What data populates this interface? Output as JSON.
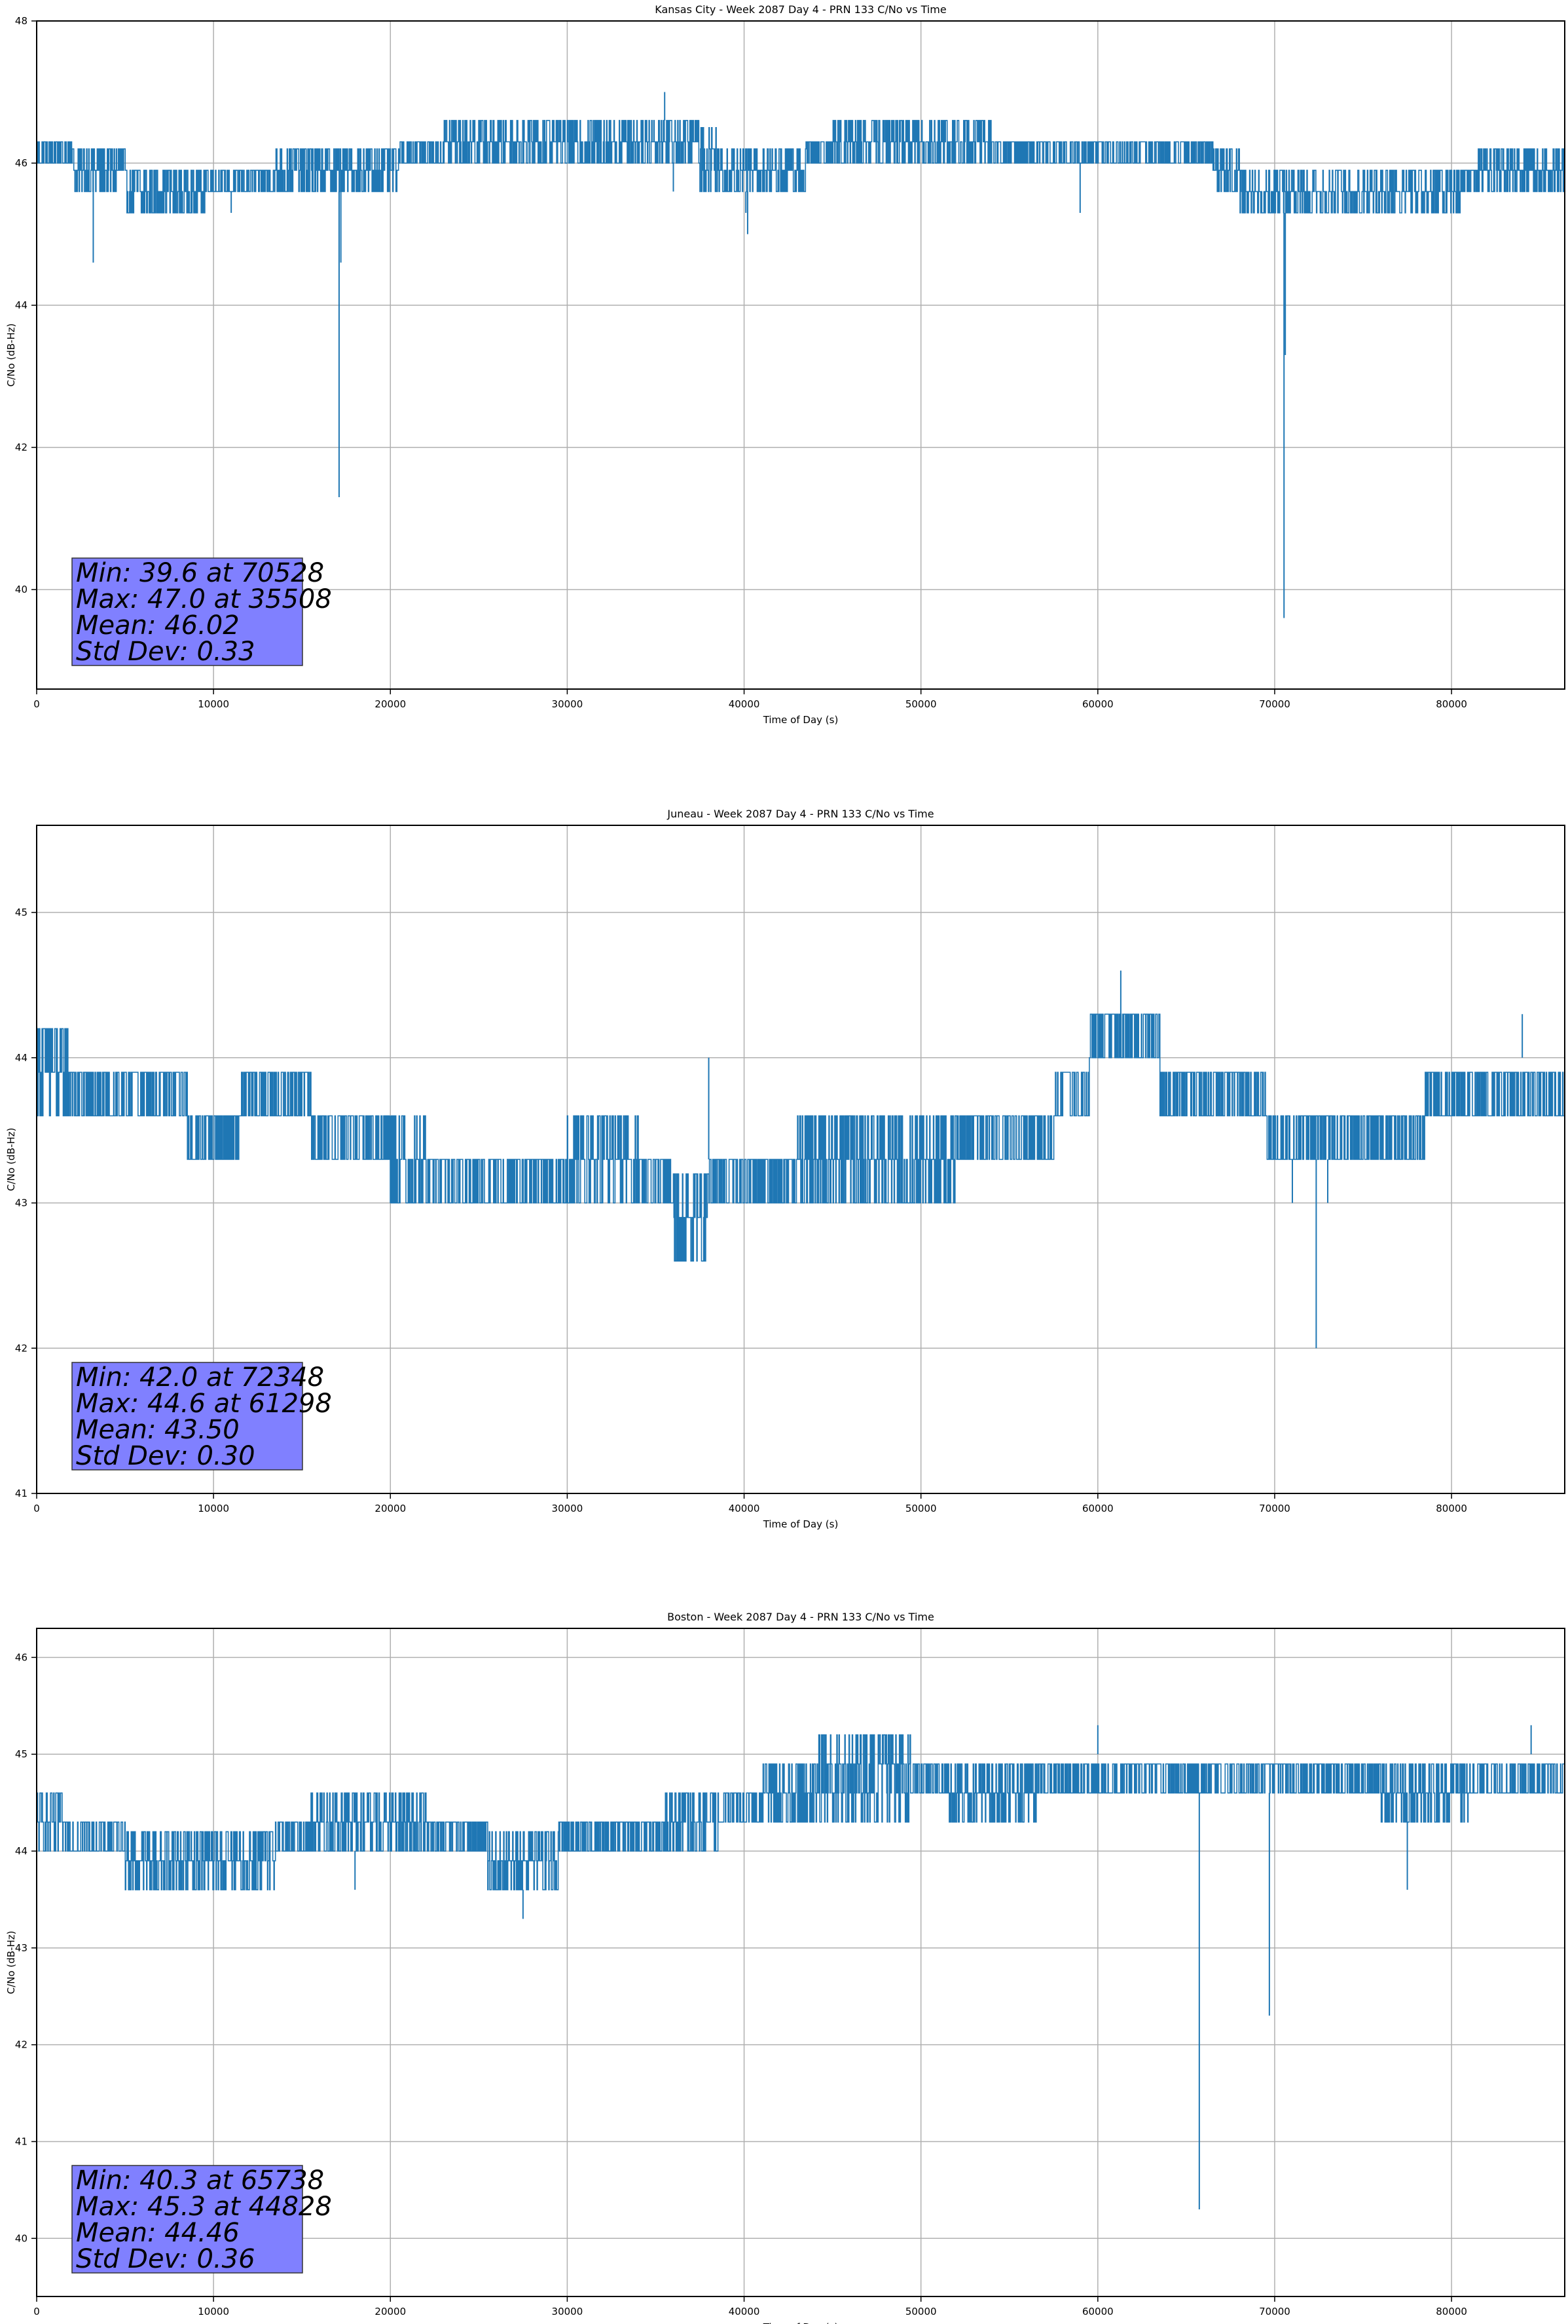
{
  "chart_data": [
    {
      "type": "line",
      "title": "Kansas City - Week 2087 Day 4 - PRN 133 C/No vs Time",
      "xlabel": "Time of Day (s)",
      "ylabel": "C/No (dB-Hz)",
      "xlim": [
        0,
        86400
      ],
      "ylim": [
        38.6,
        48.0
      ],
      "xticks": [
        0,
        10000,
        20000,
        30000,
        40000,
        50000,
        60000,
        70000,
        80000
      ],
      "yticks": [
        40,
        42,
        44,
        46,
        48
      ],
      "grid": true,
      "series_color": "#1f77b4",
      "band": [
        [
          0,
          46.0,
          46.3
        ],
        [
          2000,
          45.6,
          46.3
        ],
        [
          5000,
          45.3,
          46.0
        ],
        [
          9500,
          45.6,
          46.0
        ],
        [
          13500,
          45.6,
          46.3
        ],
        [
          20500,
          46.0,
          46.3
        ],
        [
          23000,
          46.0,
          46.6
        ],
        [
          37500,
          45.6,
          46.6
        ],
        [
          38500,
          45.6,
          46.3
        ],
        [
          43500,
          46.0,
          46.3
        ],
        [
          45000,
          46.0,
          46.6
        ],
        [
          54000,
          46.0,
          46.3
        ],
        [
          66500,
          45.6,
          46.3
        ],
        [
          68000,
          45.3,
          46.0
        ],
        [
          80500,
          45.6,
          46.0
        ],
        [
          81500,
          45.6,
          46.3
        ],
        [
          86400,
          45.6,
          46.3
        ]
      ],
      "spikes": [
        [
          3200,
          44.6
        ],
        [
          11000,
          45.3
        ],
        [
          17100,
          41.3
        ],
        [
          17200,
          44.6
        ],
        [
          35508,
          47.0
        ],
        [
          40200,
          45.0
        ],
        [
          40100,
          45.3
        ],
        [
          59000,
          45.3
        ],
        [
          70528,
          39.6
        ],
        [
          70600,
          43.3
        ],
        [
          36000,
          45.6
        ],
        [
          30000,
          46.6
        ],
        [
          48000,
          46.6
        ]
      ],
      "stats_text": [
        "Min: 39.6 at 70528",
        "Max: 47.0 at 35508",
        "Mean: 46.02",
        "Std Dev: 0.33"
      ]
    },
    {
      "type": "line",
      "title": "Juneau - Week 2087 Day 4 - PRN 133 C/No vs Time",
      "xlabel": "Time of Day (s)",
      "ylabel": "C/No (dB-Hz)",
      "xlim": [
        0,
        86400
      ],
      "ylim": [
        41.0,
        45.6
      ],
      "xticks": [
        0,
        10000,
        20000,
        30000,
        40000,
        50000,
        60000,
        70000,
        80000
      ],
      "yticks": [
        41,
        42,
        43,
        44,
        45
      ],
      "grid": true,
      "series_color": "#1f77b4",
      "band": [
        [
          0,
          43.6,
          44.3
        ],
        [
          2000,
          43.6,
          44.0
        ],
        [
          8500,
          43.3,
          43.6
        ],
        [
          11500,
          43.6,
          44.0
        ],
        [
          14500,
          43.6,
          43.9
        ],
        [
          15500,
          43.3,
          43.6
        ],
        [
          20000,
          43.0,
          43.6
        ],
        [
          22000,
          43.0,
          43.3
        ],
        [
          30000,
          43.0,
          43.6
        ],
        [
          34000,
          43.0,
          43.3
        ],
        [
          36000,
          42.6,
          43.3
        ],
        [
          38000,
          43.0,
          43.3
        ],
        [
          43000,
          43.0,
          43.6
        ],
        [
          52000,
          43.3,
          43.6
        ],
        [
          57500,
          43.6,
          44.0
        ],
        [
          59500,
          44.0,
          44.3
        ],
        [
          63500,
          43.6,
          44.0
        ],
        [
          69500,
          43.3,
          43.6
        ],
        [
          78500,
          43.6,
          44.0
        ],
        [
          86400,
          43.6,
          44.0
        ]
      ],
      "spikes": [
        [
          72348,
          42.0
        ],
        [
          61298,
          44.6
        ],
        [
          38000,
          44.0
        ],
        [
          84000,
          44.3
        ],
        [
          71000,
          43.0
        ],
        [
          73000,
          43.0
        ],
        [
          20000,
          43.0
        ],
        [
          42500,
          43.0
        ],
        [
          57000,
          43.3
        ]
      ],
      "stats_text": [
        "Min: 42.0 at 72348",
        "Max: 44.6 at 61298",
        "Mean: 43.50",
        "Std Dev: 0.30"
      ]
    },
    {
      "type": "line",
      "title": "Boston - Week 2087 Day 4 - PRN 133 C/No vs Time",
      "xlabel": "Time of Day (s)",
      "ylabel": "C/No (dB-Hz)",
      "xlim": [
        0,
        86400
      ],
      "ylim": [
        39.4,
        46.3
      ],
      "xticks": [
        0,
        10000,
        20000,
        30000,
        40000,
        50000,
        60000,
        70000,
        80000
      ],
      "yticks": [
        40,
        41,
        42,
        43,
        44,
        45,
        46
      ],
      "grid": true,
      "series_color": "#1f77b4",
      "band": [
        [
          0,
          44.0,
          44.6
        ],
        [
          1500,
          44.0,
          44.3
        ],
        [
          5000,
          43.6,
          44.3
        ],
        [
          13500,
          44.0,
          44.3
        ],
        [
          15500,
          44.0,
          44.6
        ],
        [
          22000,
          44.0,
          44.3
        ],
        [
          25500,
          43.6,
          44.3
        ],
        [
          29500,
          44.0,
          44.3
        ],
        [
          35500,
          44.0,
          44.6
        ],
        [
          38500,
          44.3,
          44.6
        ],
        [
          41000,
          44.3,
          45.0
        ],
        [
          44000,
          44.3,
          45.3
        ],
        [
          49500,
          44.6,
          45.0
        ],
        [
          51500,
          44.3,
          45.0
        ],
        [
          56500,
          44.6,
          45.0
        ],
        [
          76000,
          44.3,
          45.0
        ],
        [
          81000,
          44.6,
          45.0
        ],
        [
          86400,
          44.6,
          45.0
        ]
      ],
      "spikes": [
        [
          65738,
          40.3
        ],
        [
          69700,
          42.3
        ],
        [
          27500,
          43.3
        ],
        [
          77500,
          43.6
        ],
        [
          44828,
          45.3
        ],
        [
          60000,
          45.3
        ],
        [
          84500,
          45.3
        ],
        [
          18000,
          43.6
        ]
      ],
      "stats_text": [
        "Min: 40.3 at 65738",
        "Max: 45.3 at 44828",
        "Mean: 44.46",
        "Std Dev: 0.36"
      ]
    }
  ]
}
